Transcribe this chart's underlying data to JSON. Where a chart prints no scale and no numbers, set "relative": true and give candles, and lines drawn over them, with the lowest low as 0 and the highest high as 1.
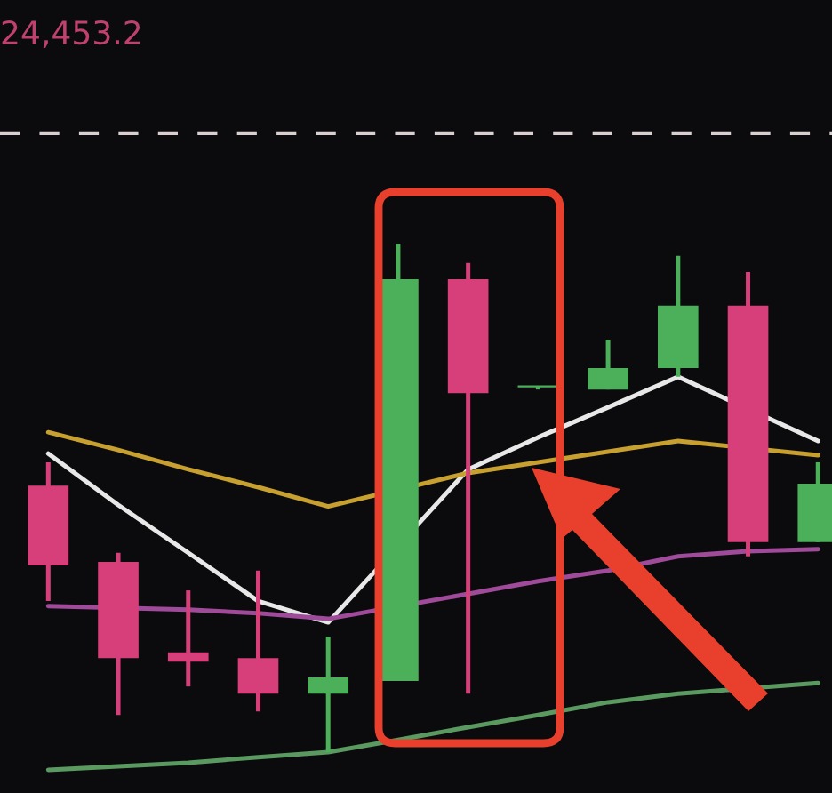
{
  "chart_data": {
    "type": "candlestick",
    "relative": true,
    "categories": [
      null,
      null,
      null,
      null,
      null,
      null,
      null,
      null,
      null,
      null,
      null,
      null
    ],
    "ohlc": [
      [
        0.524,
        0.57,
        0.297,
        0.367
      ],
      [
        0.374,
        0.392,
        0.073,
        0.185
      ],
      [
        0.196,
        0.318,
        0.129,
        0.178
      ],
      [
        0.185,
        0.357,
        0.08,
        0.115
      ],
      [
        0.115,
        0.227,
        0.0,
        0.147
      ],
      [
        0.14,
        1.0,
        0.14,
        0.93
      ],
      [
        0.93,
        0.962,
        0.115,
        0.706
      ],
      [
        0.717,
        0.72,
        0.713,
        0.72
      ],
      [
        0.713,
        0.811,
        0.713,
        0.755
      ],
      [
        0.755,
        0.976,
        0.738,
        0.878
      ],
      [
        0.878,
        0.944,
        0.385,
        0.413
      ],
      [
        0.413,
        0.57,
        0.413,
        0.528
      ]
    ],
    "colors": [
      "#d63f7a",
      "#d63f7a",
      "#d63f7a",
      "#d63f7a",
      "#4caf5a",
      "#4caf5a",
      "#d63f7a",
      "#4caf5a",
      "#4caf5a",
      "#4caf5a",
      "#d63f7a",
      "#4caf5a"
    ],
    "series": [
      {
        "type": "line",
        "color": "#e8e8e8",
        "values": [
          0.587,
          0.486,
          0.392,
          0.297,
          0.255,
          null,
          0.556,
          0.619,
          0.678,
          0.738,
          null,
          0.612
        ]
      },
      {
        "type": "line",
        "color": "#c8a030",
        "values": [
          0.629,
          0.594,
          0.556,
          0.521,
          0.483,
          null,
          0.549,
          0.57,
          0.591,
          0.612,
          null,
          0.584
        ]
      },
      {
        "type": "line",
        "color": "#a04a9a",
        "values": [
          0.287,
          null,
          0.28,
          0.273,
          0.262,
          null,
          0.311,
          0.336,
          0.357,
          0.385,
          0.395,
          0.399
        ]
      },
      {
        "type": "line",
        "color": "#5a9a60",
        "values": [
          -0.035,
          -0.028,
          -0.021,
          -0.01,
          0.0,
          0.024,
          0.049,
          0.073,
          0.098,
          0.115,
          null,
          0.136
        ]
      }
    ],
    "ref_lines": [
      {
        "axis": "y",
        "value": 1.217,
        "color": "#d8d0d0",
        "line_style": "dashed"
      }
    ],
    "annotations": [
      "24,453.2"
    ]
  }
}
